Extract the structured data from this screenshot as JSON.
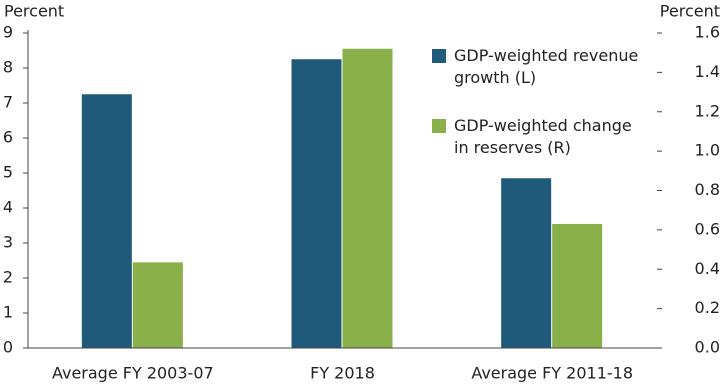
{
  "chart_data": {
    "type": "bar",
    "y_label": "Percent",
    "y2_label": "Percent",
    "categories": [
      "Average FY 2003-07",
      "FY 2018",
      "Average FY 2011-18"
    ],
    "series": [
      {
        "name": "GDP-weighted revenue growth (L)",
        "color": "#1f5a7a",
        "values": [
          7.25,
          8.25,
          4.85
        ]
      },
      {
        "name": "GDP-weighted change in reserves (R)",
        "color": "#8ab04a",
        "values": [
          0.435,
          1.52,
          0.63
        ],
        "axis": "y2"
      }
    ],
    "ylim": [
      0,
      9
    ],
    "yticks": [
      0,
      1,
      2,
      3,
      4,
      5,
      6,
      7,
      8,
      9
    ],
    "y2lim": [
      0,
      1.6
    ],
    "y2ticks": [
      {
        "value": 0,
        "label": "0.0"
      },
      0.2,
      0.4,
      0.6,
      0.8,
      {
        "value": 1,
        "label": "1.0"
      },
      1.2,
      1.4,
      1.6
    ],
    "legend": "top-right",
    "grid": false
  }
}
